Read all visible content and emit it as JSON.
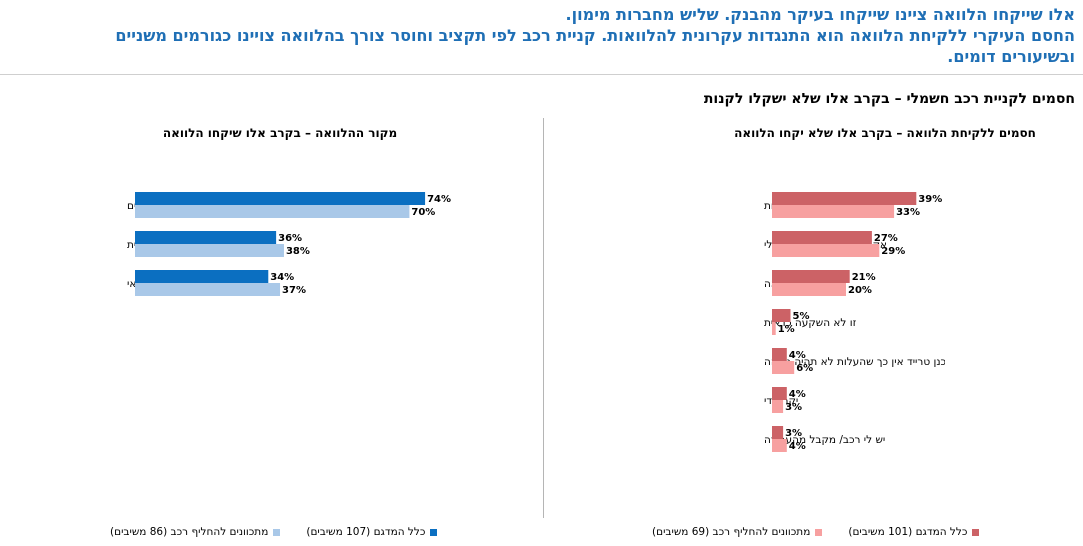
{
  "header": {
    "line1": "אלו שייקחו הלוואה ציינו שייקחו בעיקר מהבנק. שליש מחברות מימון.",
    "line2": "החסם העיקרי ללקיחת הלוואה הוא  התנגדות עקרונית להלוואות.  קניית רכב לפי תקציב  וחוסר צורך בהלוואה צויינו כגורמים משניים",
    "line3": "ובשיעורים דומים."
  },
  "section_title": "חסמים לקניית רכב חשמלי – בקרב אלו שלא ישקלו לקנות",
  "colors": {
    "blue_dark": "#0b6fc1",
    "blue_light": "#a9c8e8",
    "red_dark": "#cc6266",
    "red_light": "#f7a0a0",
    "headline": "#1f6fb5"
  },
  "legends": {
    "left": {
      "dark": "כלל המדגם (107 משיבים)",
      "light": "מתכוונים להחליף רכב (86 משיבים)"
    },
    "right": {
      "dark": "כלל המדגם (101 משיבים)",
      "light": "מתכוונים להחליף רכב (69 משיבים)"
    }
  },
  "chart_data": [
    {
      "type": "bar",
      "orientation": "horizontal",
      "title": "מקור ההלוואה – בקרב אלו שיקחו הלוואה",
      "categories": [
        "בנקים",
        "חברות מימון חוץ בנקאית",
        "חברות כרטיסי אשראי"
      ],
      "series": [
        {
          "name": "כלל המדגם (107 משיבים)",
          "values": [
            74,
            36,
            34
          ],
          "labels": [
            "74%",
            "36%",
            "34%"
          ]
        },
        {
          "name": "מתכוונים להחליף רכב (86 משיבים)",
          "values": [
            70,
            38,
            37
          ],
          "labels": [
            "70%",
            "38%",
            "37%"
          ]
        }
      ],
      "unit": "%",
      "xlim": [
        0,
        100
      ],
      "legend_position": "bottom"
    },
    {
      "type": "bar",
      "orientation": "horizontal",
      "title": "חסמים ללקיחת הלוואה – בקרב אלו שלא יקחו הלוואה",
      "categories": [
        "לא לוקח הלוואות",
        "אקנה  רכב לפי התקציב שלי",
        "אין צורך בהלוואה",
        "זו לא השקעה כדאית",
        "מתכנן טרייד אין כך שהעלות לא תהיה גבוהה",
        "יקר מדי",
        "יש לי רכב/ מקבל מהעבודה"
      ],
      "series": [
        {
          "name": "כלל המדגם (101 משיבים)",
          "values": [
            39,
            27,
            21,
            5,
            4,
            4,
            3
          ],
          "labels": [
            "39%",
            "27%",
            "21%",
            "5%",
            "4%",
            "4%",
            "3%"
          ]
        },
        {
          "name": "מתכוונים להחליף רכב (69 משיבים)",
          "values": [
            33,
            29,
            20,
            1,
            6,
            3,
            4
          ],
          "labels": [
            "33%",
            "29%",
            "20%",
            "1%",
            "6%",
            "3%",
            "4%"
          ]
        }
      ],
      "unit": "%",
      "xlim": [
        0,
        100
      ],
      "legend_position": "bottom"
    }
  ]
}
